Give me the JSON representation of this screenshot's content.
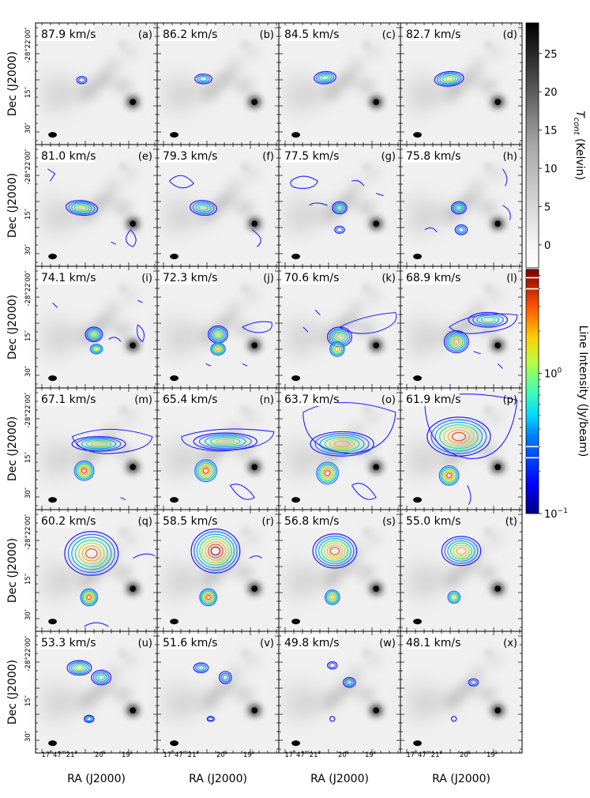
{
  "figure": {
    "colorbar_top": {
      "label": "T_cont (Kelvin)",
      "label_main": "T",
      "label_sub": "cont",
      "label_rest": " (Kelvin)",
      "ticks": [
        "25",
        "20",
        "15",
        "10",
        "5",
        "0"
      ],
      "tick_values": [
        25,
        20,
        15,
        10,
        5,
        0
      ],
      "range": [
        -3,
        29
      ]
    },
    "colorbar_bottom": {
      "label": "Line Intensity (Jy/beam)",
      "tick_main": "10",
      "tick_main_exp": "0",
      "tick_low": "10",
      "tick_low_exp": "−1",
      "log_range": [
        0.1,
        5.5
      ],
      "contour_marks": [
        0.25,
        0.3,
        4.0,
        4.8
      ]
    },
    "axes": {
      "xlabel": "RA (J2000)",
      "ylabel": "Dec (J2000)",
      "xticks_prefix": "17",
      "xticks_h": "h",
      "xticks_m": "47",
      "xticks_mm": "m",
      "xticks_first_s": "21",
      "xticks_second": "20",
      "xticks_third": "19",
      "s_unit": "s",
      "yticks_first": "-28°22′00″",
      "ytick_15": "15″",
      "ytick_30": "30″"
    },
    "contour_colors": [
      "#2020ff",
      "#2f6cff",
      "#00b8e0",
      "#40d890",
      "#b8e040",
      "#f0b030",
      "#e85020",
      "#c01010"
    ]
  },
  "chart_data": {
    "type": "heatmap",
    "description_note": "",
    "panels": [
      {
        "velocity": "87.9 km/s",
        "tag": "(a)",
        "v": 87.9
      },
      {
        "velocity": "86.2 km/s",
        "tag": "(b)",
        "v": 86.2
      },
      {
        "velocity": "84.5 km/s",
        "tag": "(c)",
        "v": 84.5
      },
      {
        "velocity": "82.7 km/s",
        "tag": "(d)",
        "v": 82.7
      },
      {
        "velocity": "81.0 km/s",
        "tag": "(e)",
        "v": 81.0
      },
      {
        "velocity": "79.3 km/s",
        "tag": "(f)",
        "v": 79.3
      },
      {
        "velocity": "77.5 km/s",
        "tag": "(g)",
        "v": 77.5
      },
      {
        "velocity": "75.8 km/s",
        "tag": "(h)",
        "v": 75.8
      },
      {
        "velocity": "74.1 km/s",
        "tag": "(i)",
        "v": 74.1
      },
      {
        "velocity": "72.3 km/s",
        "tag": "(j)",
        "v": 72.3
      },
      {
        "velocity": "70.6 km/s",
        "tag": "(k)",
        "v": 70.6
      },
      {
        "velocity": "68.9 km/s",
        "tag": "(l)",
        "v": 68.9
      },
      {
        "velocity": "67.1 km/s",
        "tag": "(m)",
        "v": 67.1
      },
      {
        "velocity": "65.4 km/s",
        "tag": "(n)",
        "v": 65.4
      },
      {
        "velocity": "63.7 km/s",
        "tag": "(o)",
        "v": 63.7
      },
      {
        "velocity": "61.9 km/s",
        "tag": "(p)",
        "v": 61.9
      },
      {
        "velocity": "60.2 km/s",
        "tag": "(q)",
        "v": 60.2
      },
      {
        "velocity": "58.5 km/s",
        "tag": "(r)",
        "v": 58.5
      },
      {
        "velocity": "56.8 km/s",
        "tag": "(s)",
        "v": 56.8
      },
      {
        "velocity": "55.0 km/s",
        "tag": "(t)",
        "v": 55.0
      },
      {
        "velocity": "53.3 km/s",
        "tag": "(u)",
        "v": 53.3
      },
      {
        "velocity": "51.6 km/s",
        "tag": "(v)",
        "v": 51.6
      },
      {
        "velocity": "49.8 km/s",
        "tag": "(w)",
        "v": 49.8
      },
      {
        "velocity": "48.1 km/s",
        "tag": "(x)",
        "v": 48.1
      }
    ]
  }
}
